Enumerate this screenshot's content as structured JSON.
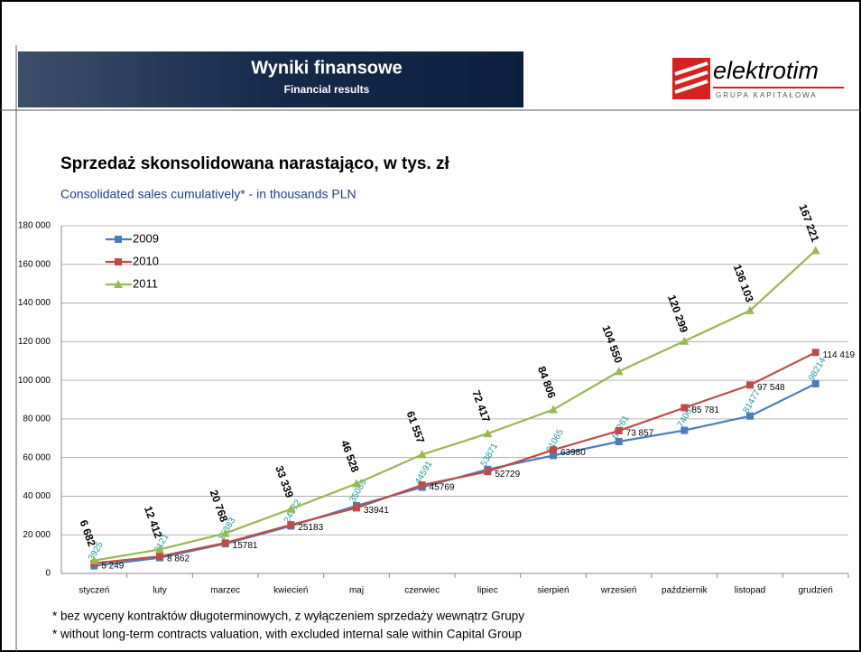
{
  "header": {
    "title": "Wyniki finansowe",
    "subtitle": "Financial results",
    "logo_name": "elektrotim",
    "logo_tagline": "GRUPA KAPITAŁOWA"
  },
  "chart_data": {
    "type": "line",
    "title": "Sprzedaż skonsolidowana narastająco, w tys. zł",
    "subtitle": "Consolidated sales cumulatively* - in thousands PLN",
    "categories": [
      "styczeń",
      "luty",
      "marzec",
      "kwiecień",
      "maj",
      "czerwiec",
      "lipiec",
      "sierpień",
      "wrzesień",
      "październik",
      "listopad",
      "grudzień"
    ],
    "series": [
      {
        "name": "2009",
        "color": "#4a7ebb",
        "marker": "square",
        "label_color": "#1f9a9a",
        "values": [
          3925,
          8121,
          15383,
          24572,
          35089,
          44591,
          53871,
          61065,
          68261,
          74065,
          81477,
          98214
        ],
        "value_labels": [
          "3925",
          "8121",
          "15383",
          "24572",
          "35089",
          "44591",
          "53871",
          "61065",
          "68261",
          "74065",
          "81477",
          "98214"
        ]
      },
      {
        "name": "2010",
        "color": "#be4b48",
        "marker": "square",
        "label_color": "#000000",
        "values": [
          5249,
          8862,
          15781,
          25183,
          33941,
          45769,
          52729,
          63980,
          73857,
          85781,
          97548,
          114419
        ],
        "value_labels": [
          "5 249",
          "8 862",
          "15781",
          "25183",
          "33941",
          "45769",
          "52729",
          "63980",
          "73 857",
          "85 781",
          "97 548",
          "114 419"
        ]
      },
      {
        "name": "2011",
        "color": "#98b954",
        "marker": "triangle",
        "label_color": "#000000",
        "values": [
          6682,
          12412,
          20768,
          33339,
          46528,
          61557,
          72417,
          84806,
          104550,
          120299,
          136103,
          167221
        ],
        "value_labels": [
          "6 682",
          "12 412",
          "20 768",
          "33 339",
          "46 528",
          "61 557",
          "72 417",
          "84 806",
          "104 550",
          "120 299",
          "136 103",
          "167 221"
        ]
      }
    ],
    "ylim": [
      0,
      180000
    ],
    "yticks": [
      0,
      {
        "value": 20000,
        "label": "20 000"
      },
      {
        "value": 40000,
        "label": "40 000"
      },
      {
        "value": 60000,
        "label": "60 000"
      },
      {
        "value": 80000,
        "label": "80 000"
      },
      {
        "value": 100000,
        "label": "100 000"
      },
      {
        "value": 120000,
        "label": "120 000"
      },
      {
        "value": 140000,
        "label": "140 000"
      },
      {
        "value": 160000,
        "label": "160 000"
      },
      {
        "value": 180000,
        "label": "180 000"
      }
    ],
    "grid": true,
    "legend": "top-left"
  },
  "footnotes": [
    "* bez wyceny kontraktów długoterminowych, z wyłączeniem sprzedaży wewnątrz Grupy",
    "* without long-term contracts valuation, with excluded internal sale within Capital Group"
  ]
}
